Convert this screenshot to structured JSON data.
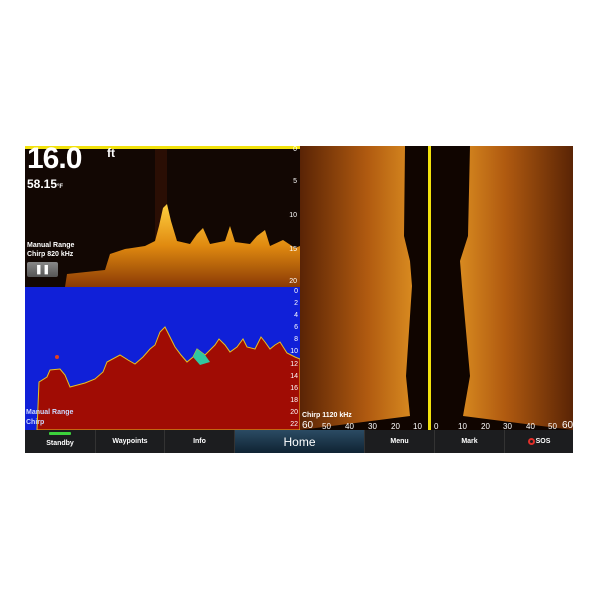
{
  "top_sonar": {
    "depth_value": "16.0",
    "depth_unit": "ft",
    "water_temp": "58.15",
    "temp_unit": "°F",
    "range_mode": "Manual Range",
    "frequency": "Chirp 820 kHz",
    "pause_icon": "pause-icon",
    "depth_scale": [
      "0",
      "5",
      "10",
      "15",
      "20"
    ]
  },
  "bottom_sonar": {
    "range_mode": "Manual Range",
    "frequency": "Chirp",
    "depth_scale": [
      "0",
      "2",
      "4",
      "6",
      "8",
      "10",
      "12",
      "14",
      "16",
      "18",
      "20",
      "22"
    ]
  },
  "side_scan": {
    "frequency": "Chirp 1120 kHz",
    "range_scale": [
      "60",
      "50",
      "40",
      "30",
      "20",
      "10",
      "0",
      "10",
      "20",
      "30",
      "40",
      "50",
      "60"
    ]
  },
  "nav": {
    "standby": "Standby",
    "waypoints": "Waypoints",
    "info": "Info",
    "home": "Home",
    "menu": "Menu",
    "mark": "Mark",
    "sos": "SOS"
  },
  "colors": {
    "accent_yellow": "#f2e20c",
    "standby_green": "#3cd23c",
    "sos_red": "#e0302a",
    "sonar_blue": "#1020d8",
    "sonar_red": "#a00c04"
  }
}
